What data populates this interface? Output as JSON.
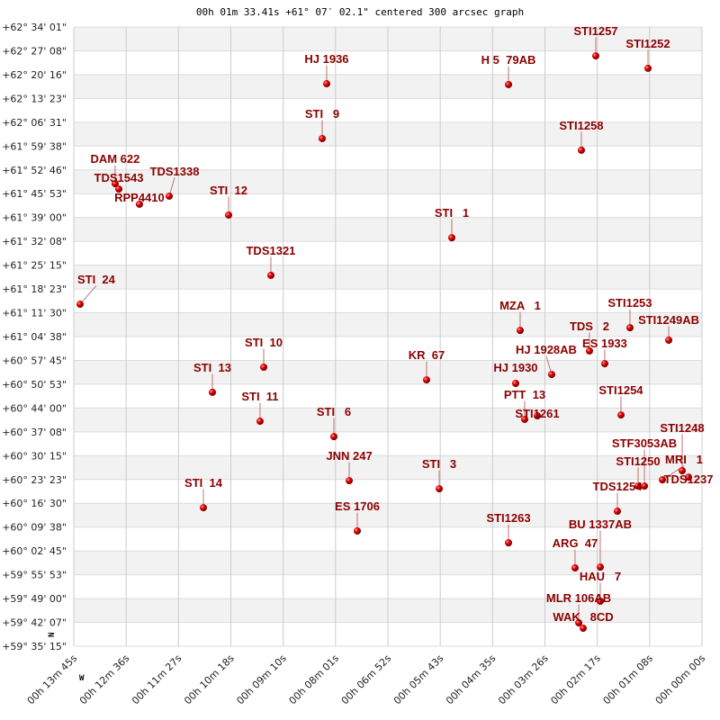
{
  "chart_data": {
    "type": "scatter",
    "title": "00h 01m 33.41s +61° 07′ 02.1\" centered 300 arcsec graph",
    "xlabel": "",
    "ylabel": "",
    "x_unit": "RA seconds (00h)",
    "x_reversed": true,
    "xlim": [
      825,
      0
    ],
    "ylim": [
      59.5875,
      62.5669
    ],
    "grid": true,
    "banded_rows": true,
    "point_color": "#dd0000",
    "label_color": "#8b0000",
    "direction_markers": {
      "north": "N",
      "west": "W"
    },
    "x_ticks": [
      "00h 13m 45s",
      "00h 12m 36s",
      "00h 11m 27s",
      "00h 10m 18s",
      "00h 09m 10s",
      "00h 08m 01s",
      "00h 06m 52s",
      "00h 05m 43s",
      "00h 04m 35s",
      "00h 03m 26s",
      "00h 02m 17s",
      "00h 01m 08s",
      "00h 00m 00s"
    ],
    "y_ticks": [
      "+62° 34' 01\"",
      "+62° 27' 08\"",
      "+62° 20' 16\"",
      "+62° 13' 23\"",
      "+62° 06' 31\"",
      "+61° 59' 38\"",
      "+61° 52' 46\"",
      "+61° 45' 53\"",
      "+61° 39' 00\"",
      "+61° 32' 08\"",
      "+61° 25' 15\"",
      "+61° 18' 23\"",
      "+61° 11' 30\"",
      "+61° 04' 38\"",
      "+60° 57' 45\"",
      "+60° 50' 53\"",
      "+60° 44' 00\"",
      "+60° 37' 08\"",
      "+60° 30' 15\"",
      "+60° 23' 23\"",
      "+60° 16' 30\"",
      "+60° 09' 38\"",
      "+60° 02' 45\"",
      "+59° 55' 53\"",
      "+59° 49' 00\"",
      "+59° 42' 07\"",
      "+59° 35' 15\""
    ],
    "points": [
      {
        "name": "DAM 622",
        "ra_s": 770.7,
        "dec": 61.813
      },
      {
        "name": "TDS1543",
        "ra_s": 765.9,
        "dec": 61.787
      },
      {
        "name": "RPP4410",
        "ra_s": 738.8,
        "dec": 61.714
      },
      {
        "name": "TDS1338",
        "ra_s": 699.7,
        "dec": 61.753
      },
      {
        "name": "STI  12",
        "ra_s": 621.7,
        "dec": 61.662
      },
      {
        "name": "HJ 1936",
        "ra_s": 492.9,
        "dec": 62.294
      },
      {
        "name": "STI   9",
        "ra_s": 498.8,
        "dec": 62.03
      },
      {
        "name": "H 5  79AB",
        "ra_s": 254.1,
        "dec": 62.29
      },
      {
        "name": "STI1257",
        "ra_s": 139.5,
        "dec": 62.428
      },
      {
        "name": "STI1252",
        "ra_s": 70.9,
        "dec": 62.368
      },
      {
        "name": "STI1258",
        "ra_s": 158.4,
        "dec": 61.974
      },
      {
        "name": "STI   1",
        "ra_s": 328.6,
        "dec": 61.553
      },
      {
        "name": "TDS1321",
        "ra_s": 566.2,
        "dec": 61.372
      },
      {
        "name": "STI  24",
        "ra_s": 816.8,
        "dec": 61.233
      },
      {
        "name": "MZA   1",
        "ra_s": 238.8,
        "dec": 61.107
      },
      {
        "name": "STI1253",
        "ra_s": 94.6,
        "dec": 61.12
      },
      {
        "name": "STI1249AB",
        "ra_s": 43.7,
        "dec": 61.06
      },
      {
        "name": "TDS   2",
        "ra_s": 147.8,
        "dec": 61.008
      },
      {
        "name": "ES 1933",
        "ra_s": 127.7,
        "dec": 60.947
      },
      {
        "name": "HJ 1928AB",
        "ra_s": 197.4,
        "dec": 60.895
      },
      {
        "name": "HJ 1930",
        "ra_s": 244.7,
        "dec": 60.852
      },
      {
        "name": "KR  67",
        "ra_s": 361.7,
        "dec": 60.869
      },
      {
        "name": "STI  10",
        "ra_s": 575.6,
        "dec": 60.93
      },
      {
        "name": "STI  13",
        "ra_s": 643.0,
        "dec": 60.809
      },
      {
        "name": "STI  11",
        "ra_s": 580.4,
        "dec": 60.67
      },
      {
        "name": "STI   6",
        "ra_s": 483.4,
        "dec": 60.596
      },
      {
        "name": "PTT  13",
        "ra_s": 232.9,
        "dec": 60.679
      },
      {
        "name": "STI1261",
        "ra_s": 216.3,
        "dec": 60.696
      },
      {
        "name": "STI1254",
        "ra_s": 106.4,
        "dec": 60.7
      },
      {
        "name": "JNN 247",
        "ra_s": 463.3,
        "dec": 60.384
      },
      {
        "name": "STI   3",
        "ra_s": 345.1,
        "dec": 60.345
      },
      {
        "name": "STI  14",
        "ra_s": 654.8,
        "dec": 60.254
      },
      {
        "name": "ES 1706",
        "ra_s": 452.7,
        "dec": 60.142
      },
      {
        "name": "TDS1254",
        "ra_s": 111.1,
        "dec": 60.237
      },
      {
        "name": "STI1263",
        "ra_s": 254.1,
        "dec": 60.085
      },
      {
        "name": "ARG  47",
        "ra_s": 166.7,
        "dec": 59.964
      },
      {
        "name": "BU 1337AB",
        "ra_s": 133.6,
        "dec": 59.968
      },
      {
        "name": "HAU   7",
        "ra_s": 133.6,
        "dec": 59.804
      },
      {
        "name": "MLR 106AB",
        "ra_s": 161.9,
        "dec": 59.7
      },
      {
        "name": "WAK   8CD",
        "ra_s": 156.0,
        "dec": 59.674
      },
      {
        "name": "STI1250",
        "ra_s": 83.9,
        "dec": 60.358
      },
      {
        "name": "STF3053AB",
        "ra_s": 75.6,
        "dec": 60.358
      },
      {
        "name": "MRI   1",
        "ra_s": 52.0,
        "dec": 60.388
      },
      {
        "name": "STI1248",
        "ra_s": 26.0,
        "dec": 60.432
      },
      {
        "name": "TDS1237",
        "ra_s": 17.7,
        "dec": 60.401
      }
    ]
  }
}
